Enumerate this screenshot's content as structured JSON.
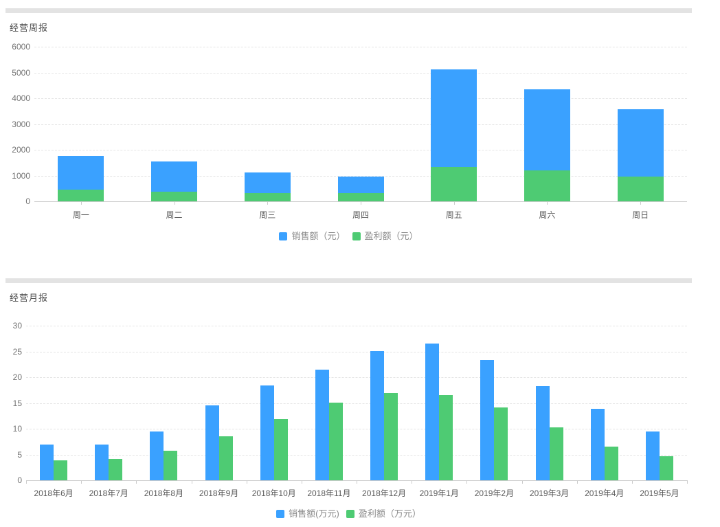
{
  "page": {
    "background": "#ffffff",
    "divider_color": "#e3e3e3"
  },
  "chart_data": [
    {
      "id": "weekly",
      "type": "bar",
      "variant": "overlap-stacked",
      "title": "经营周报",
      "categories": [
        "周一",
        "周二",
        "周三",
        "周四",
        "周五",
        "周六",
        "周日"
      ],
      "series": [
        {
          "name": "销售额（元）",
          "color": "#3aa1ff",
          "values": [
            1750,
            1540,
            1110,
            960,
            5130,
            4350,
            3580
          ]
        },
        {
          "name": "盈利额（元）",
          "color": "#4ecb73",
          "values": [
            450,
            370,
            320,
            310,
            1340,
            1210,
            960
          ]
        }
      ],
      "ylim": [
        0,
        6000
      ],
      "ytick_step": 1000,
      "ytick_labels": [
        "0",
        "1000",
        "2000",
        "3000",
        "4000",
        "5000",
        "6000"
      ],
      "grid": "horizontal-dashed",
      "legend_position": "bottom-center",
      "note": "盈利额 green bar drawn in front at same x covering bottom of blue 销售额 bar"
    },
    {
      "id": "monthly",
      "type": "bar",
      "variant": "grouped",
      "title": "经营月报",
      "categories": [
        "2018年6月",
        "2018年7月",
        "2018年8月",
        "2018年9月",
        "2018年10月",
        "2018年11月",
        "2018年12月",
        "2019年1月",
        "2019年2月",
        "2019年3月",
        "2019年4月",
        "2019年5月"
      ],
      "series": [
        {
          "name": "销售额(万元)",
          "color": "#3aa1ff",
          "values": [
            7.0,
            6.9,
            9.5,
            14.5,
            18.4,
            21.5,
            25.1,
            26.5,
            23.3,
            18.3,
            13.9,
            9.5
          ]
        },
        {
          "name": "盈利额（万元）",
          "color": "#4ecb73",
          "values": [
            3.9,
            4.2,
            5.7,
            8.5,
            11.9,
            15.1,
            17.0,
            16.5,
            14.2,
            10.3,
            6.5,
            4.7
          ]
        }
      ],
      "ylim": [
        0,
        30
      ],
      "ytick_step": 5,
      "ytick_labels": [
        "0",
        "5",
        "10",
        "15",
        "20",
        "25",
        "30"
      ],
      "grid": "horizontal-dashed",
      "legend_position": "bottom-center"
    }
  ]
}
